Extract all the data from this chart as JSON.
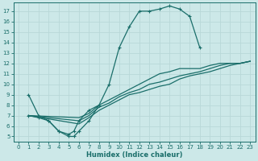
{
  "xlabel": "Humidex (Indice chaleur)",
  "ylabel": "",
  "bg_color": "#cce8e8",
  "line_color": "#1a6e6a",
  "xlim": [
    -0.5,
    23.5
  ],
  "ylim": [
    4.5,
    17.8
  ],
  "xticks": [
    0,
    1,
    2,
    3,
    4,
    5,
    6,
    7,
    8,
    9,
    10,
    11,
    12,
    13,
    14,
    15,
    16,
    17,
    18,
    19,
    20,
    21,
    22,
    23
  ],
  "yticks": [
    5,
    6,
    7,
    8,
    9,
    10,
    11,
    12,
    13,
    14,
    15,
    16,
    17
  ],
  "line_peak": [
    [
      1,
      9
    ],
    [
      2,
      7
    ],
    [
      3,
      6.5
    ],
    [
      4,
      5.5
    ],
    [
      5,
      5
    ],
    [
      5.5,
      5
    ],
    [
      6,
      5.5
    ],
    [
      7,
      6.5
    ],
    [
      8,
      8
    ],
    [
      9,
      10
    ],
    [
      10,
      13.5
    ],
    [
      11,
      15.5
    ],
    [
      12,
      17
    ],
    [
      13,
      17
    ],
    [
      14,
      17.2
    ],
    [
      15,
      17.5
    ],
    [
      16,
      17.2
    ],
    [
      17,
      16.5
    ],
    [
      18,
      13.5
    ]
  ],
  "line_zigzag": [
    [
      1,
      7
    ],
    [
      2,
      6.8
    ],
    [
      3,
      6.5
    ],
    [
      4,
      5.5
    ],
    [
      5,
      5.2
    ],
    [
      5.5,
      5.5
    ],
    [
      6,
      6.5
    ],
    [
      7,
      7.5
    ],
    [
      8,
      8
    ]
  ],
  "line_diag1": [
    [
      1,
      7
    ],
    [
      6,
      6.8
    ],
    [
      7,
      7.2
    ],
    [
      8,
      8
    ],
    [
      9,
      8.5
    ],
    [
      10,
      9
    ],
    [
      11,
      9.5
    ],
    [
      12,
      10
    ],
    [
      13,
      10.5
    ],
    [
      14,
      11
    ],
    [
      15,
      11.2
    ],
    [
      16,
      11.5
    ],
    [
      17,
      11.5
    ],
    [
      18,
      11.5
    ],
    [
      19,
      11.8
    ],
    [
      20,
      12
    ],
    [
      21,
      12
    ],
    [
      22,
      12
    ],
    [
      23,
      12.2
    ]
  ],
  "line_diag2": [
    [
      1,
      7
    ],
    [
      6,
      6.5
    ],
    [
      7,
      7
    ],
    [
      8,
      7.8
    ],
    [
      9,
      8.2
    ],
    [
      10,
      8.8
    ],
    [
      11,
      9.2
    ],
    [
      12,
      9.5
    ],
    [
      13,
      10
    ],
    [
      14,
      10.2
    ],
    [
      15,
      10.5
    ],
    [
      16,
      10.8
    ],
    [
      17,
      11
    ],
    [
      18,
      11.2
    ],
    [
      19,
      11.5
    ],
    [
      20,
      11.8
    ],
    [
      21,
      12
    ],
    [
      22,
      12
    ],
    [
      23,
      12.2
    ]
  ],
  "line_diag3": [
    [
      1,
      7
    ],
    [
      6,
      6.2
    ],
    [
      7,
      6.8
    ],
    [
      8,
      7.5
    ],
    [
      9,
      8
    ],
    [
      10,
      8.5
    ],
    [
      11,
      9
    ],
    [
      12,
      9.2
    ],
    [
      13,
      9.5
    ],
    [
      14,
      9.8
    ],
    [
      15,
      10
    ],
    [
      16,
      10.5
    ],
    [
      17,
      10.8
    ],
    [
      18,
      11
    ],
    [
      19,
      11.2
    ],
    [
      20,
      11.5
    ],
    [
      21,
      11.8
    ],
    [
      22,
      12
    ],
    [
      23,
      12.2
    ]
  ]
}
